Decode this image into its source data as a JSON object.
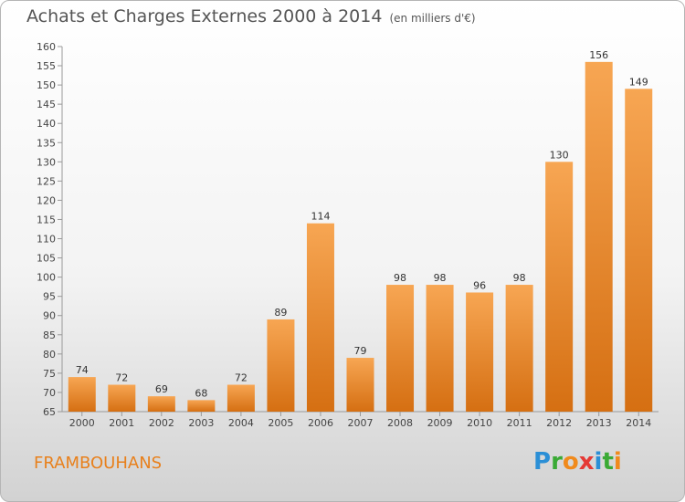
{
  "title": "Achats et Charges Externes 2000 à 2014",
  "unit": "(en milliers d'€)",
  "commune": "FRAMBOUHANS",
  "logo": {
    "letters": [
      "P",
      "r",
      "o",
      "x",
      "i",
      "t",
      "i"
    ],
    "colors": [
      "#2b8fd6",
      "#3aaa35",
      "#f08a1c",
      "#e53935",
      "#2b8fd6",
      "#3aaa35",
      "#f08a1c"
    ]
  },
  "colors": {
    "bar_light": "#f7a653",
    "bar_dark": "#d56f12",
    "commune": "#e8801c"
  },
  "chart_data": {
    "type": "bar",
    "categories": [
      "2000",
      "2001",
      "2002",
      "2003",
      "2004",
      "2005",
      "2006",
      "2007",
      "2008",
      "2009",
      "2010",
      "2011",
      "2012",
      "2013",
      "2014"
    ],
    "values": [
      74,
      72,
      69,
      68,
      72,
      89,
      114,
      79,
      98,
      98,
      96,
      98,
      130,
      156,
      149
    ],
    "ylim": [
      65,
      160
    ],
    "yticks": [
      65,
      70,
      75,
      80,
      85,
      90,
      95,
      100,
      105,
      110,
      115,
      120,
      125,
      130,
      135,
      140,
      145,
      150,
      155,
      160
    ],
    "grid": false
  }
}
